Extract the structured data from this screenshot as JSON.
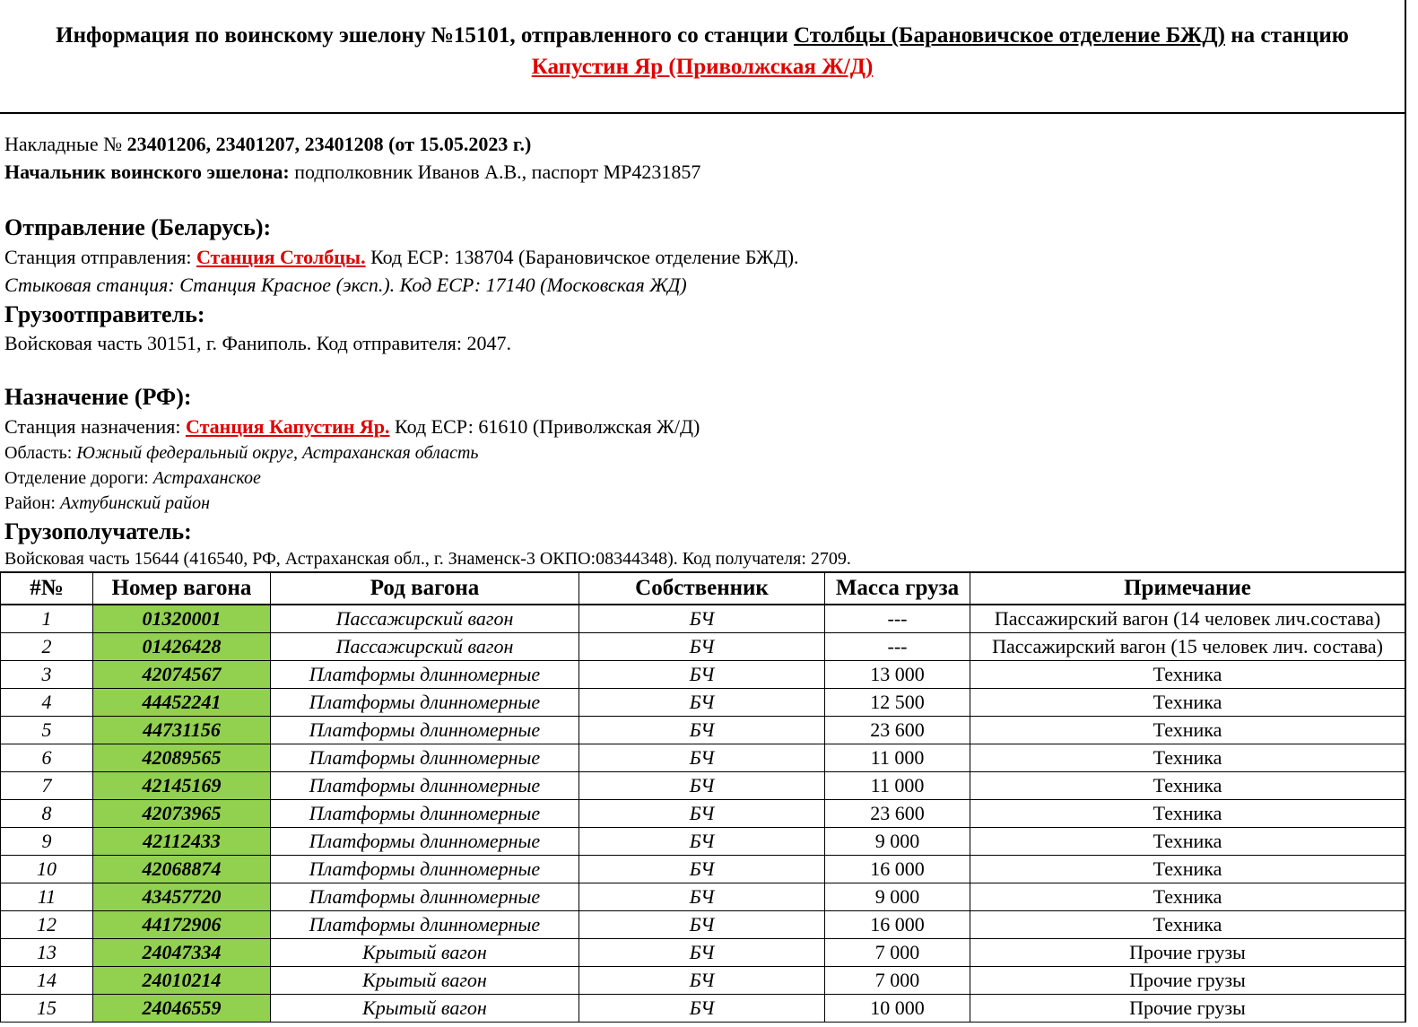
{
  "title": {
    "part1": "Информация по воинскому эшелону №15101, отправленного со станции ",
    "from_station": "Столбцы (Барановичское отделение БЖД)",
    "part2": " на станцию ",
    "to_station": "Капустин Яр (Приволжская Ж/Д)"
  },
  "invoices": {
    "label": "Накладные № ",
    "value": "23401206, 23401207, 23401208 (от 15.05.2023 г.)"
  },
  "chief": {
    "label": "Начальник воинского эшелона:",
    "value": " подполковник Иванов А.В., паспорт МР4231857"
  },
  "departure": {
    "heading": "Отправление (Беларусь):",
    "station_label": "Станция отправления: ",
    "station": "Станция Столбцы.",
    "station_rest": " Код ЕСР: 138704 (Барановичское отделение БЖД).",
    "junction": "Стыковая станция: Станция Красное (эксп.). Код ЕСР: 17140 (Московская ЖД)"
  },
  "shipper": {
    "heading": "Грузоотправитель:",
    "value": "Войсковая часть 30151, г. Фаниполь. Код отправителя: 2047."
  },
  "destination": {
    "heading": "Назначение (РФ):",
    "station_label": "Станция назначения: ",
    "station": "Станция Капустин Яр.",
    "station_rest": " Код ЕСР: 61610 (Приволжская Ж/Д)",
    "region_label": "Область: ",
    "region": "Южный федеральный округ, Астраханская область",
    "division_label": "Отделение дороги: ",
    "division": "Астраханское",
    "district_label": "Район: ",
    "district": "Ахтубинский район"
  },
  "consignee": {
    "heading": "Грузополучатель:",
    "value": "Войсковая часть 15644 (416540, РФ, Астраханская обл., г. Знаменск-3 ОКПО:08344348). Код получателя: 2709."
  },
  "table": {
    "headers": [
      "#№",
      "Номер вагона",
      "Род вагона",
      "Собственник",
      "Масса груза",
      "Примечание"
    ],
    "rows": [
      [
        "1",
        "01320001",
        "Пассажирский вагон",
        "БЧ",
        "---",
        "Пассажирский вагон (14 человек лич.состава)"
      ],
      [
        "2",
        "01426428",
        "Пассажирский вагон",
        "БЧ",
        "---",
        "Пассажирский вагон (15 человек лич. состава)"
      ],
      [
        "3",
        "42074567",
        "Платформы длинномерные",
        "БЧ",
        "13 000",
        "Техника"
      ],
      [
        "4",
        "44452241",
        "Платформы длинномерные",
        "БЧ",
        "12 500",
        "Техника"
      ],
      [
        "5",
        "44731156",
        "Платформы длинномерные",
        "БЧ",
        "23 600",
        "Техника"
      ],
      [
        "6",
        "42089565",
        "Платформы длинномерные",
        "БЧ",
        "11 000",
        "Техника"
      ],
      [
        "7",
        "42145169",
        "Платформы длинномерные",
        "БЧ",
        "11 000",
        "Техника"
      ],
      [
        "8",
        "42073965",
        "Платформы длинномерные",
        "БЧ",
        "23 600",
        "Техника"
      ],
      [
        "9",
        "42112433",
        "Платформы длинномерные",
        "БЧ",
        "9 000",
        "Техника"
      ],
      [
        "10",
        "42068874",
        "Платформы длинномерные",
        "БЧ",
        "16 000",
        "Техника"
      ],
      [
        "11",
        "43457720",
        "Платформы длинномерные",
        "БЧ",
        "9 000",
        "Техника"
      ],
      [
        "12",
        "44172906",
        "Платформы длинномерные",
        "БЧ",
        "16 000",
        "Техника"
      ],
      [
        "13",
        "24047334",
        "Крытый вагон",
        "БЧ",
        "7 000",
        "Прочие грузы"
      ],
      [
        "14",
        "24010214",
        "Крытый вагон",
        "БЧ",
        "7 000",
        "Прочие грузы"
      ],
      [
        "15",
        "24046559",
        "Крытый вагон",
        "БЧ",
        "10 000",
        "Прочие грузы"
      ]
    ]
  },
  "colors": {
    "highlight_green": "#92d050",
    "accent_red": "#e00000"
  }
}
